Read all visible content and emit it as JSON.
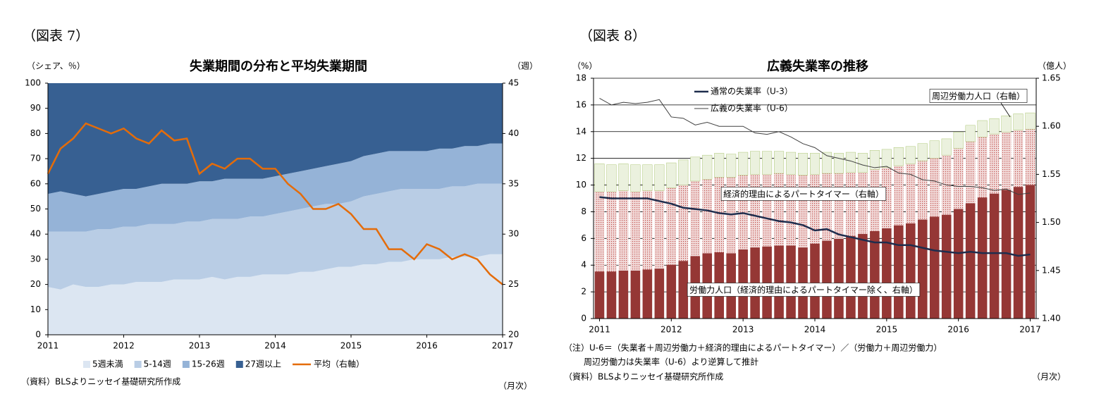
{
  "chart_data": [
    {
      "type": "area",
      "label": "（図表 7）",
      "title": "失業期間の分布と平均失業期間",
      "ylabel": "（シェア、％）",
      "y2label": "（週）",
      "source": "（資料）BLSよりニッセイ基礎研究所作成",
      "xnote": "（月次）",
      "categories": [
        "2011",
        null,
        null,
        null,
        null,
        null,
        "2012",
        null,
        null,
        null,
        null,
        null,
        "2013",
        null,
        null,
        null,
        null,
        null,
        "2014",
        null,
        null,
        null,
        null,
        null,
        "2015",
        null,
        null,
        null,
        null,
        null,
        "2016",
        null,
        null,
        null,
        null,
        null,
        "2017"
      ],
      "ylim": [
        0,
        100
      ],
      "yticks": [
        0,
        10,
        20,
        30,
        40,
        50,
        60,
        70,
        80,
        90,
        100
      ],
      "y2lim": [
        20,
        45
      ],
      "y2ticks": [
        20,
        25,
        30,
        35,
        40,
        45
      ],
      "grid": false,
      "legend": "bottom",
      "series": [
        {
          "name": "5週未満",
          "color": "#dce6f2",
          "values": [
            19,
            18,
            20,
            19,
            19,
            20,
            20,
            21,
            21,
            21,
            22,
            22,
            22,
            23,
            22,
            23,
            23,
            24,
            24,
            24,
            25,
            25,
            26,
            27,
            27,
            28,
            28,
            29,
            29,
            30,
            30,
            30,
            31,
            31,
            31,
            32,
            32
          ]
        },
        {
          "name": "5-14週",
          "color": "#b9cde5",
          "values": [
            22,
            23,
            21,
            22,
            23,
            22,
            23,
            22,
            23,
            23,
            22,
            23,
            23,
            23,
            24,
            23,
            24,
            23,
            24,
            25,
            25,
            26,
            26,
            25,
            26,
            27,
            28,
            28,
            29,
            28,
            28,
            28,
            28,
            28,
            29,
            28,
            28
          ]
        },
        {
          "name": "15-26週",
          "color": "#95b3d7",
          "values": [
            15,
            16,
            15,
            14,
            14,
            15,
            15,
            15,
            15,
            16,
            16,
            15,
            16,
            15,
            16,
            16,
            15,
            15,
            15,
            15,
            15,
            15,
            15,
            16,
            16,
            16,
            16,
            16,
            15,
            15,
            15,
            16,
            15,
            16,
            15,
            16,
            16
          ]
        },
        {
          "name": "27週以上",
          "color": "#376092",
          "values": [
            44,
            43,
            44,
            45,
            44,
            43,
            42,
            42,
            41,
            40,
            40,
            40,
            39,
            39,
            38,
            38,
            38,
            38,
            37,
            36,
            35,
            34,
            33,
            32,
            31,
            29,
            28,
            27,
            27,
            27,
            27,
            26,
            26,
            25,
            25,
            24,
            24
          ]
        },
        {
          "name": "平均（右軸）",
          "type": "line",
          "axis": "y2",
          "color": "#e46c0a",
          "values": [
            36,
            38.5,
            39.5,
            41,
            40.5,
            40,
            40.5,
            39.5,
            39,
            40.3,
            39.3,
            39.5,
            36,
            37,
            36.5,
            37.5,
            37.5,
            36.5,
            36.5,
            35,
            34,
            32.5,
            32.5,
            33,
            32,
            30.5,
            30.5,
            28.5,
            28.5,
            27.5,
            29,
            28.5,
            27.5,
            28,
            27.5,
            26,
            25
          ]
        }
      ]
    },
    {
      "type": "bar",
      "label": "（図表 8）",
      "title": "広義失業率の推移",
      "ylabel": "（%）",
      "y2label": "（億人）",
      "notes": [
        "（注）U-6＝（失業者＋周辺労働力＋経済的理由によるパートタイマー）／（労働力＋周辺労働力）",
        "周辺労働力は失業率（U-6）より逆算して推計"
      ],
      "source": "（資料）BLSよりニッセイ基礎研究所作成",
      "xnote": "（月次）",
      "categories": [
        "2011",
        null,
        null,
        null,
        null,
        null,
        "2012",
        null,
        null,
        null,
        null,
        null,
        "2013",
        null,
        null,
        null,
        null,
        null,
        "2014",
        null,
        null,
        null,
        null,
        null,
        "2015",
        null,
        null,
        null,
        null,
        null,
        "2016",
        null,
        null,
        null,
        null,
        null,
        "2017"
      ],
      "ylim": [
        0,
        18
      ],
      "yticks": [
        0,
        2,
        4,
        6,
        8,
        10,
        12,
        14,
        16,
        18
      ],
      "y2lim": [
        1.4,
        1.65
      ],
      "y2ticks": [
        {
          "value": 1.4,
          "label": "1.40"
        },
        1.45,
        {
          "value": 1.5,
          "label": "1.50"
        },
        1.55,
        {
          "value": 1.6,
          "label": "1.60"
        },
        1.65
      ],
      "grid": true,
      "legend": "upper left",
      "series": [
        {
          "name": "労働力人口（経済的理由によるパートタイマー除く、右軸）",
          "axis": "y2",
          "color": "#953735",
          "values": [
            1.449,
            1.449,
            1.45,
            1.45,
            1.451,
            1.452,
            1.456,
            1.46,
            1.465,
            1.468,
            1.469,
            1.468,
            1.472,
            1.474,
            1.475,
            1.476,
            1.476,
            1.474,
            1.478,
            1.481,
            1.483,
            1.486,
            1.488,
            1.491,
            1.494,
            1.497,
            1.499,
            1.503,
            1.506,
            1.508,
            1.514,
            1.52,
            1.526,
            1.53,
            1.534,
            1.537,
            1.539
          ]
        },
        {
          "name": "経済的理由によるパートタイマー（右軸）",
          "axis": "y2",
          "color": "#f2dcdb",
          "values": [
            0.083,
            0.083,
            0.083,
            0.082,
            0.082,
            0.081,
            0.08,
            0.079,
            0.078,
            0.077,
            0.078,
            0.079,
            0.077,
            0.076,
            0.075,
            0.075,
            0.074,
            0.075,
            0.072,
            0.07,
            0.068,
            0.066,
            0.064,
            0.064,
            0.063,
            0.062,
            0.062,
            0.061,
            0.061,
            0.062,
            0.063,
            0.064,
            0.063,
            0.062,
            0.06,
            0.059,
            0.058
          ]
        },
        {
          "name": "周辺労働力人口（右軸）",
          "axis": "y2",
          "color": "#ebf1de",
          "values": [
            0.029,
            0.028,
            0.028,
            0.028,
            0.027,
            0.027,
            0.026,
            0.026,
            0.025,
            0.025,
            0.025,
            0.024,
            0.024,
            0.024,
            0.024,
            0.023,
            0.023,
            0.023,
            0.022,
            0.022,
            0.021,
            0.021,
            0.02,
            0.02,
            0.019,
            0.019,
            0.018,
            0.018,
            0.018,
            0.017,
            0.017,
            0.017,
            0.017,
            0.016,
            0.017,
            0.017,
            0.017
          ]
        },
        {
          "name": "通常の失業率（U-3）",
          "type": "line",
          "color": "#1f2d4d",
          "values": [
            9.1,
            9.0,
            9.0,
            9.0,
            9.0,
            8.8,
            8.6,
            8.3,
            8.2,
            8.1,
            7.9,
            7.8,
            7.9,
            7.7,
            7.5,
            7.3,
            7.2,
            7.0,
            6.6,
            6.7,
            6.3,
            6.1,
            5.9,
            5.7,
            5.7,
            5.5,
            5.5,
            5.3,
            5.1,
            5.0,
            4.9,
            5.0,
            4.9,
            4.9,
            4.9,
            4.7,
            4.8
          ]
        },
        {
          "name": "広義の失業率（U-6）",
          "type": "line",
          "color": "#404040",
          "values": [
            16.5,
            16.0,
            16.2,
            16.1,
            16.2,
            16.4,
            15.1,
            15.0,
            14.5,
            14.7,
            14.4,
            14.4,
            14.4,
            13.9,
            13.8,
            14.0,
            13.6,
            13.1,
            12.8,
            12.2,
            12.0,
            11.8,
            11.5,
            11.3,
            11.4,
            10.9,
            10.8,
            10.4,
            10.3,
            10.0,
            9.9,
            9.9,
            9.8,
            9.6,
            9.7,
            9.3,
            9.4
          ]
        }
      ]
    }
  ]
}
